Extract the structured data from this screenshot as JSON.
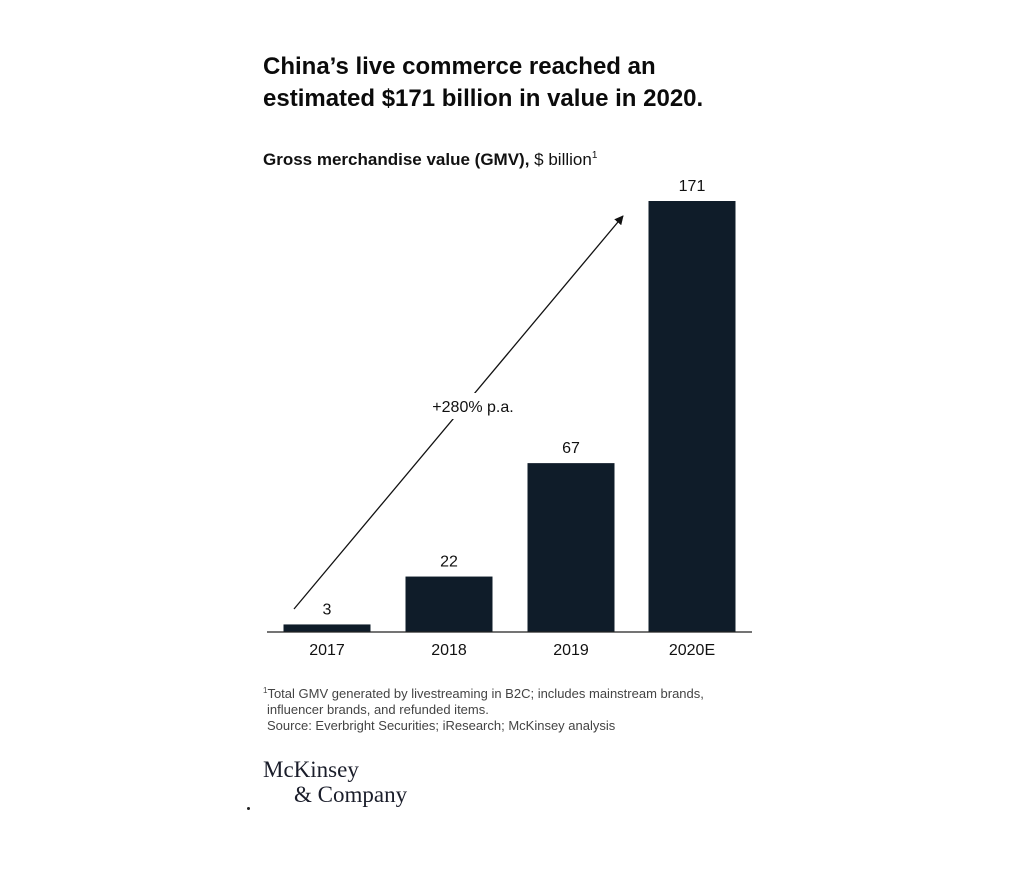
{
  "title": {
    "line1": "China’s live commerce reached an",
    "line2": "estimated $171 billion in value in 2020."
  },
  "subtitle": {
    "strong": "Gross merchandise value (GMV),",
    "unit": "$ billion",
    "footnote_mark": "1"
  },
  "chart_data": {
    "type": "bar",
    "categories": [
      "2017",
      "2018",
      "2019",
      "2020E"
    ],
    "values": [
      3,
      22,
      67,
      171
    ],
    "data_labels": [
      "3",
      "22",
      "67",
      "171"
    ],
    "title": "China’s live commerce reached an estimated $171 billion in value in 2020.",
    "subtitle": "Gross merchandise value (GMV), $ billion",
    "xlabel": "",
    "ylabel": "",
    "ylim": [
      0,
      171
    ],
    "grid": false,
    "legend": "none",
    "bar_color": "#0f1c29",
    "annotation": {
      "text": "+280% p.a.",
      "arrow_from": "2017",
      "arrow_to": "2020E"
    }
  },
  "footnote": {
    "mark": "1",
    "line1": "Total GMV generated by livestreaming in B2C; includes mainstream brands,",
    "line2": "influencer brands, and refunded items.",
    "source": "Source: Everbright Securities; iResearch; McKinsey analysis"
  },
  "logo": {
    "line1": "McKinsey",
    "line2": "& Company"
  },
  "colors": {
    "bar": "#0f1c29",
    "text": "#121212",
    "axis": "#222222"
  }
}
